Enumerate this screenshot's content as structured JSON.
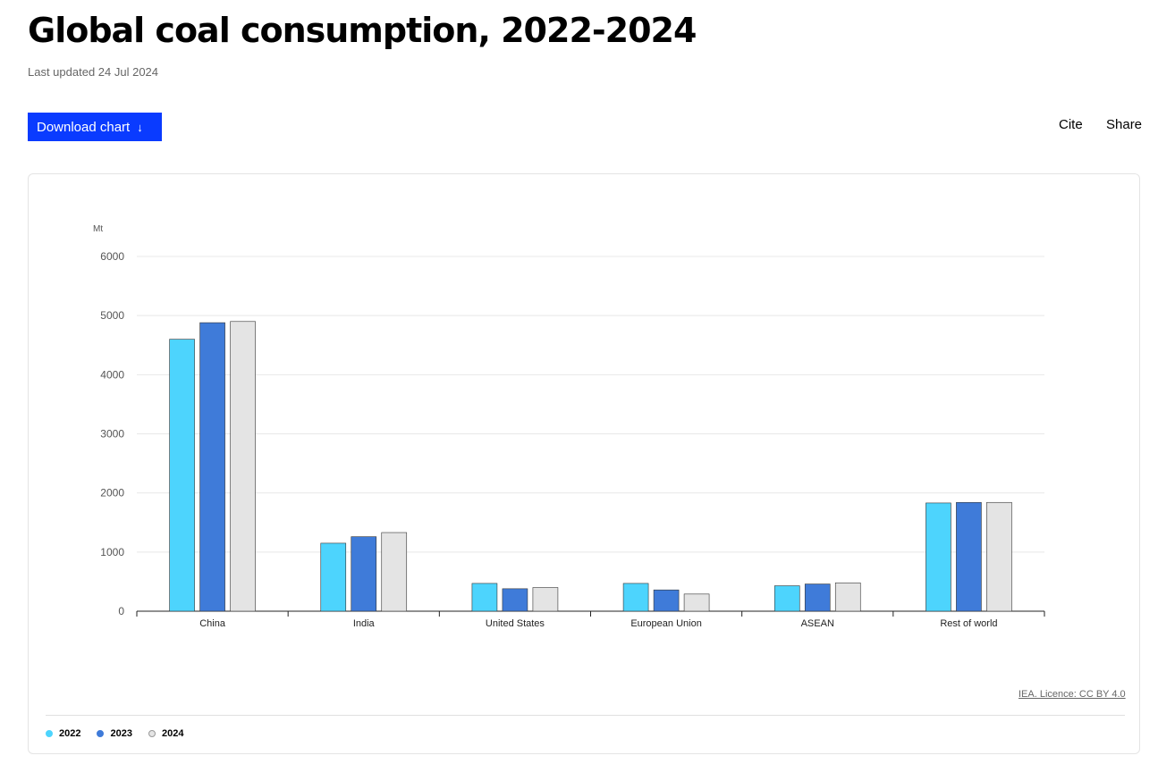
{
  "page": {
    "title": "Global coal consumption, 2022-2024",
    "last_updated": "Last updated 24 Jul 2024",
    "download_label": "Download chart",
    "download_icon": "↓",
    "cite_label": "Cite",
    "share_label": "Share",
    "licence": "IEA. Licence: CC BY 4.0"
  },
  "colors": {
    "2022": "#4dd4fd",
    "2023": "#3f7bd9",
    "2024": "#e4e4e4"
  },
  "chart_data": {
    "type": "bar",
    "ylabel": "Mt",
    "ylim": [
      0,
      6000
    ],
    "yticks": [
      0,
      1000,
      2000,
      3000,
      4000,
      5000,
      6000
    ],
    "grid": true,
    "legend_position": "bottom-left",
    "categories": [
      "China",
      "India",
      "United States",
      "European Union",
      "ASEAN",
      "Rest of world"
    ],
    "series": [
      {
        "name": "2022",
        "color": "#4dd4fd",
        "values": [
          4600,
          1150,
          470,
          470,
          430,
          1830
        ]
      },
      {
        "name": "2023",
        "color": "#3f7bd9",
        "values": [
          4880,
          1260,
          380,
          360,
          460,
          1840
        ]
      },
      {
        "name": "2024",
        "color": "#e4e4e4",
        "values": [
          4900,
          1330,
          400,
          290,
          480,
          1840
        ]
      }
    ]
  }
}
